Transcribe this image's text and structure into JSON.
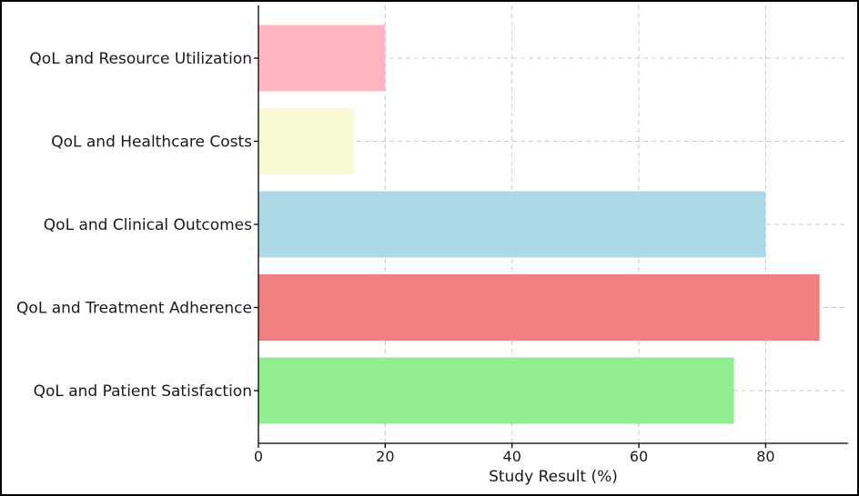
{
  "chart_data": {
    "type": "bar",
    "orientation": "horizontal",
    "title": "",
    "xlabel": "Study Result (%)",
    "ylabel": "",
    "xlim": [
      0,
      93
    ],
    "xticks": [
      0,
      20,
      40,
      60,
      80
    ],
    "grid": true,
    "categories": [
      "QoL and Patient Satisfaction",
      "QoL and Treatment Adherence",
      "QoL and Clinical Outcomes",
      "QoL and Healthcare Costs",
      "QoL and Resource Utilization"
    ],
    "values": [
      75,
      88.5,
      80,
      15,
      20
    ],
    "colors": [
      "#90ee90",
      "#f08080",
      "#add8e6",
      "#fafad2",
      "#ffb6c1"
    ]
  }
}
